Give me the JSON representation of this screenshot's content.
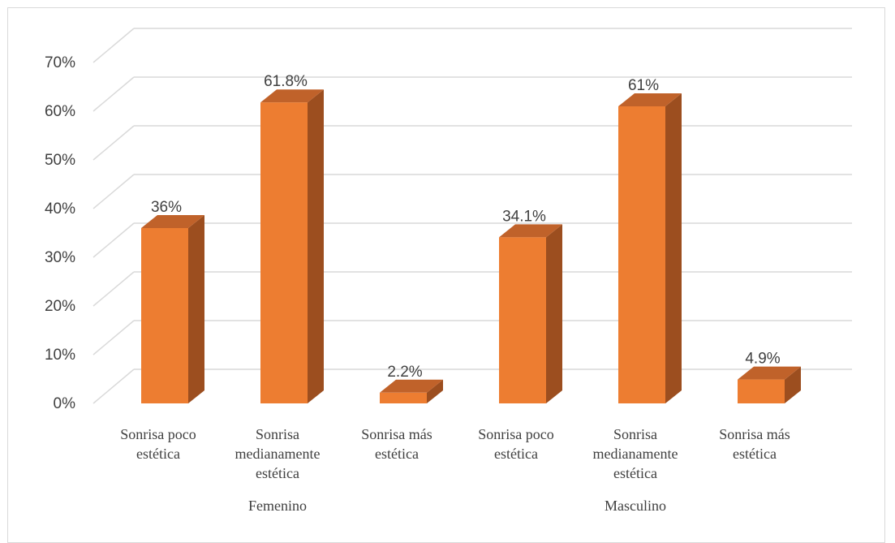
{
  "chart_data": {
    "type": "bar",
    "title": "",
    "xlabel": "",
    "ylabel": "",
    "ylim": [
      0,
      70
    ],
    "yticks": [
      "0%",
      "10%",
      "20%",
      "30%",
      "40%",
      "50%",
      "60%",
      "70%"
    ],
    "grid": true,
    "three_d": true,
    "color": "#ed7d31",
    "groups": [
      {
        "name": "Femenino",
        "categories": [
          [
            "Sonrisa poco",
            "estética"
          ],
          [
            "Sonrisa",
            "medianamente",
            "estética"
          ],
          [
            "Sonrisa más",
            "estética"
          ]
        ],
        "values": [
          36,
          61.8,
          2.2
        ],
        "labels": [
          "36%",
          "61.8%",
          "2.2%"
        ]
      },
      {
        "name": "Masculino",
        "categories": [
          [
            "Sonrisa poco",
            "estética"
          ],
          [
            "Sonrisa",
            "medianamente",
            "estética"
          ],
          [
            "Sonrisa más",
            "estética"
          ]
        ],
        "values": [
          34.1,
          61,
          4.9
        ],
        "labels": [
          "34.1%",
          "61%",
          "4.9%"
        ]
      }
    ]
  }
}
